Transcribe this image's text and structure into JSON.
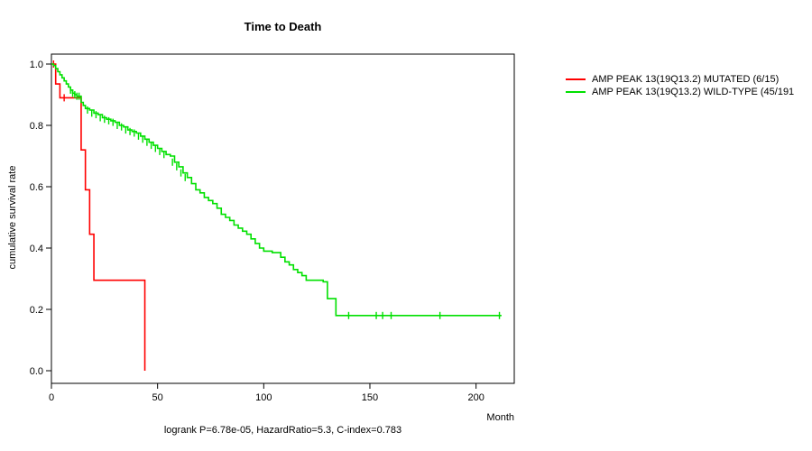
{
  "page": {
    "background": "#ffffff"
  },
  "chart_data": {
    "type": "line",
    "subtype": "kaplan-meier-step",
    "title": "Time to Death",
    "xlabel": "Month",
    "ylabel": "cumulative survival rate",
    "footer": "logrank P=6.78e-05, HazardRatio=5.3, C-index=0.783",
    "xlim": [
      0,
      218
    ],
    "ylim": [
      0,
      1.0
    ],
    "xticks": [
      0,
      50,
      100,
      150,
      200
    ],
    "yticks": [
      0.0,
      0.2,
      0.4,
      0.6,
      0.8,
      1.0
    ],
    "grid": false,
    "legend_position": "right-outside",
    "series": [
      {
        "name": "AMP PEAK 13(19Q13.2) MUTATED (6/15)",
        "color": "#ff0000",
        "steps": [
          [
            0,
            1.0
          ],
          [
            2,
            0.935
          ],
          [
            4,
            0.89
          ],
          [
            14,
            0.72
          ],
          [
            16,
            0.59
          ],
          [
            18,
            0.445
          ],
          [
            20,
            0.295
          ],
          [
            44,
            0.0
          ]
        ],
        "censor": [
          [
            1,
            1.0
          ],
          [
            6,
            0.89
          ]
        ]
      },
      {
        "name": "AMP PEAK 13(19Q13.2) WILD-TYPE (45/191",
        "color": "#00e000",
        "steps": [
          [
            0,
            1.0
          ],
          [
            1,
            0.995
          ],
          [
            2,
            0.985
          ],
          [
            3,
            0.975
          ],
          [
            4,
            0.965
          ],
          [
            5,
            0.955
          ],
          [
            6,
            0.945
          ],
          [
            7,
            0.935
          ],
          [
            8,
            0.925
          ],
          [
            9,
            0.915
          ],
          [
            10,
            0.905
          ],
          [
            11,
            0.9
          ],
          [
            12,
            0.895
          ],
          [
            14,
            0.875
          ],
          [
            15,
            0.865
          ],
          [
            16,
            0.855
          ],
          [
            18,
            0.85
          ],
          [
            20,
            0.84
          ],
          [
            22,
            0.835
          ],
          [
            24,
            0.825
          ],
          [
            26,
            0.82
          ],
          [
            28,
            0.815
          ],
          [
            30,
            0.81
          ],
          [
            32,
            0.8
          ],
          [
            34,
            0.795
          ],
          [
            36,
            0.785
          ],
          [
            38,
            0.78
          ],
          [
            40,
            0.775
          ],
          [
            42,
            0.765
          ],
          [
            44,
            0.755
          ],
          [
            46,
            0.745
          ],
          [
            48,
            0.735
          ],
          [
            50,
            0.725
          ],
          [
            52,
            0.715
          ],
          [
            54,
            0.705
          ],
          [
            56,
            0.7
          ],
          [
            58,
            0.68
          ],
          [
            60,
            0.665
          ],
          [
            62,
            0.645
          ],
          [
            64,
            0.63
          ],
          [
            66,
            0.61
          ],
          [
            68,
            0.59
          ],
          [
            70,
            0.58
          ],
          [
            72,
            0.565
          ],
          [
            74,
            0.555
          ],
          [
            76,
            0.545
          ],
          [
            78,
            0.53
          ],
          [
            80,
            0.51
          ],
          [
            82,
            0.5
          ],
          [
            84,
            0.49
          ],
          [
            86,
            0.475
          ],
          [
            88,
            0.465
          ],
          [
            90,
            0.455
          ],
          [
            92,
            0.445
          ],
          [
            94,
            0.43
          ],
          [
            96,
            0.415
          ],
          [
            98,
            0.4
          ],
          [
            100,
            0.39
          ],
          [
            104,
            0.385
          ],
          [
            108,
            0.37
          ],
          [
            110,
            0.355
          ],
          [
            112,
            0.345
          ],
          [
            114,
            0.33
          ],
          [
            116,
            0.32
          ],
          [
            118,
            0.31
          ],
          [
            120,
            0.295
          ],
          [
            128,
            0.29
          ],
          [
            130,
            0.235
          ],
          [
            134,
            0.18
          ],
          [
            212,
            0.18
          ]
        ],
        "censor": [
          [
            9,
            0.915
          ],
          [
            10,
            0.905
          ],
          [
            11,
            0.9
          ],
          [
            12,
            0.895
          ],
          [
            13,
            0.895
          ],
          [
            17,
            0.85
          ],
          [
            19,
            0.84
          ],
          [
            21,
            0.835
          ],
          [
            23,
            0.825
          ],
          [
            25,
            0.82
          ],
          [
            27,
            0.815
          ],
          [
            29,
            0.81
          ],
          [
            31,
            0.8
          ],
          [
            33,
            0.795
          ],
          [
            35,
            0.785
          ],
          [
            37,
            0.78
          ],
          [
            39,
            0.775
          ],
          [
            41,
            0.765
          ],
          [
            43,
            0.755
          ],
          [
            45,
            0.745
          ],
          [
            47,
            0.735
          ],
          [
            49,
            0.725
          ],
          [
            51,
            0.715
          ],
          [
            53,
            0.705
          ],
          [
            57,
            0.68
          ],
          [
            59,
            0.665
          ],
          [
            61,
            0.645
          ],
          [
            63,
            0.63
          ],
          [
            140,
            0.18
          ],
          [
            153,
            0.18
          ],
          [
            156,
            0.18
          ],
          [
            160,
            0.18
          ],
          [
            183,
            0.18
          ],
          [
            211,
            0.18
          ]
        ]
      }
    ]
  }
}
